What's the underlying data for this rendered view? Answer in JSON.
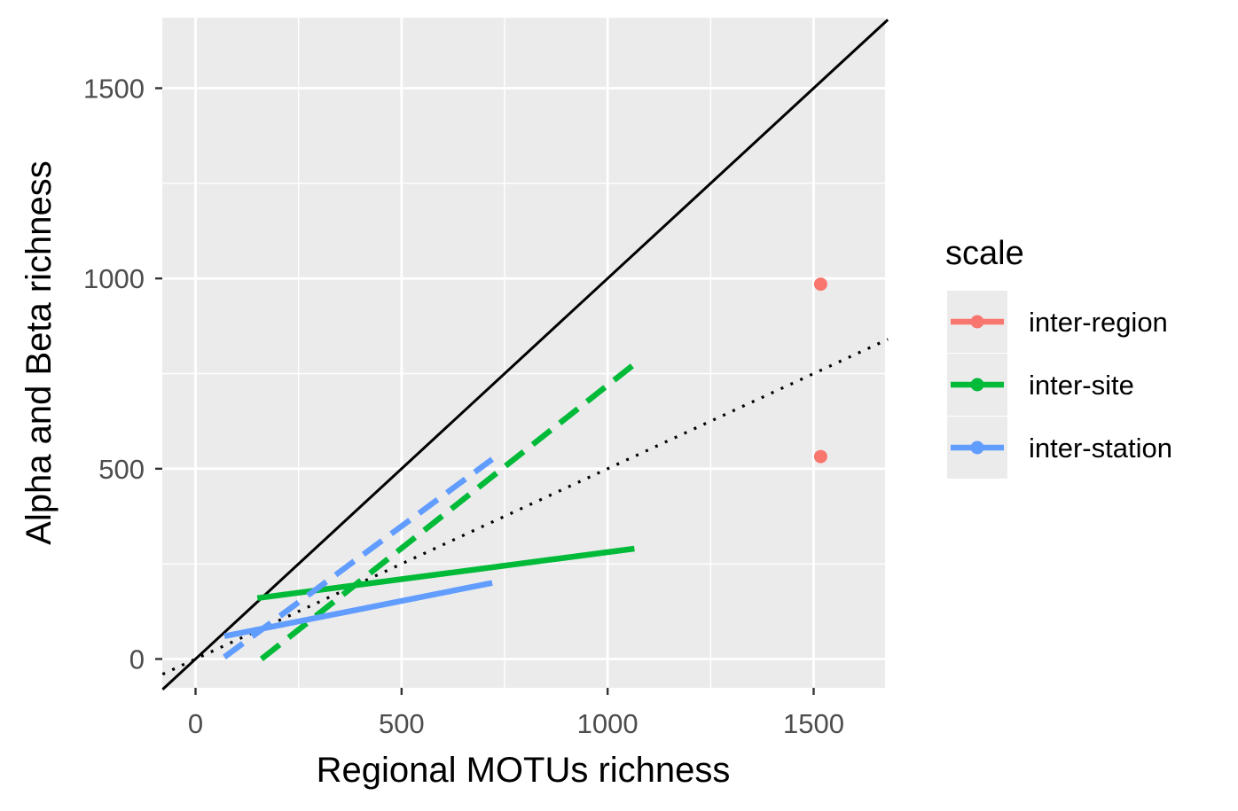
{
  "chart_data": {
    "type": "scatter",
    "title": "",
    "xlabel": "Regional MOTUs richness",
    "ylabel": "Alpha and Beta richness",
    "xlim": [
      -80,
      1680
    ],
    "ylim": [
      -80,
      1680
    ],
    "x_ticks": [
      0,
      500,
      1000,
      1500
    ],
    "y_ticks": [
      0,
      500,
      1000,
      1500
    ],
    "x_tick_labels": [
      "0",
      "500",
      "1000",
      "1500"
    ],
    "y_tick_labels": [
      "0",
      "500",
      "1000",
      "1500"
    ],
    "grid": true,
    "legend": {
      "title": "scale",
      "position": "right",
      "entries": [
        {
          "label": "inter-region",
          "color": "#F8766D"
        },
        {
          "label": "inter-site",
          "color": "#00BA38"
        },
        {
          "label": "inter-station",
          "color": "#619CFF"
        }
      ]
    },
    "reference_lines": [
      {
        "style": "solid",
        "color": "#000000",
        "slope": 1,
        "intercept": 0
      },
      {
        "style": "dotted",
        "color": "#000000",
        "slope": 0.5,
        "intercept": 0
      }
    ],
    "series": [
      {
        "name": "inter-region",
        "color": "#F8766D",
        "points": [
          [
            1517,
            985
          ],
          [
            1517,
            532
          ]
        ]
      },
      {
        "name": "inter-site",
        "color": "#00BA38",
        "lines": [
          {
            "style": "solid",
            "x": [
              150,
              1065
            ],
            "y": [
              160,
              290
            ]
          },
          {
            "style": "dashed",
            "x": [
              160,
              1065
            ],
            "y": [
              0,
              775
            ]
          }
        ]
      },
      {
        "name": "inter-station",
        "color": "#619CFF",
        "lines": [
          {
            "style": "solid",
            "x": [
              70,
              720
            ],
            "y": [
              60,
              200
            ]
          },
          {
            "style": "dashed",
            "x": [
              70,
              720
            ],
            "y": [
              5,
              525
            ]
          }
        ]
      }
    ]
  }
}
